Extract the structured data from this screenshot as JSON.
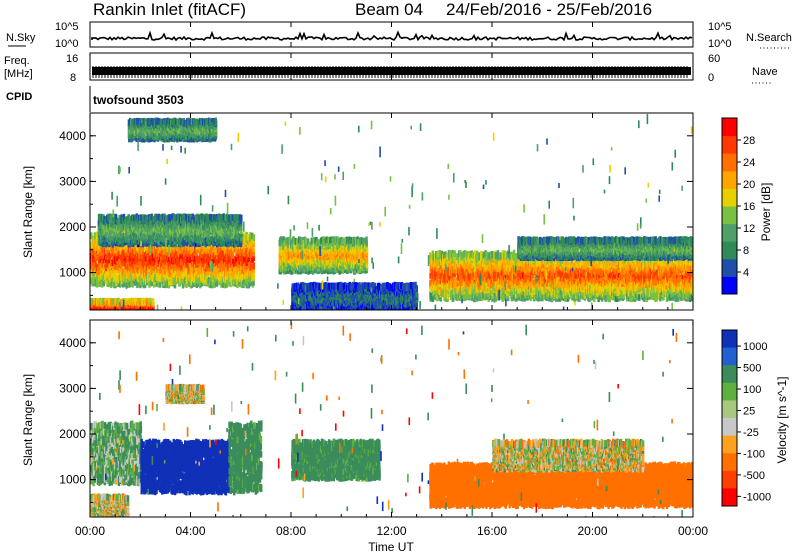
{
  "header": {
    "station": "Rankin Inlet (fitACF)",
    "beam": "Beam 04",
    "dates": "24/Feb/2016 - 25/Feb/2016"
  },
  "top_panels": {
    "nsky_label": "N.Sky",
    "nsky_ticks": [
      "10^5",
      "10^0"
    ],
    "nsearch_label": "N.Search",
    "nsearch_ticks": [
      "10^5",
      "10^0"
    ],
    "freq_label_line1": "Freq.",
    "freq_label_line2": "[MHz]",
    "freq_ticks": [
      "16",
      "8"
    ],
    "nave_label": "Nave",
    "nave_ticks": [
      "60",
      "0"
    ],
    "cpid_label": "CPID",
    "cpid_value": "twofsound 3503"
  },
  "time_axis": {
    "label": "Time UT",
    "ticks": [
      "00:00",
      "04:00",
      "08:00",
      "12:00",
      "16:00",
      "20:00",
      "00:00"
    ]
  },
  "colors": {
    "power_scale": [
      "#0000ff",
      "#1f4fa8",
      "#2e8b57",
      "#4f9f6a",
      "#7ac143",
      "#e8d000",
      "#ffa500",
      "#ff7000",
      "#ff3a00",
      "#ff0000"
    ],
    "velocity_scale": [
      "#1030b8",
      "#2060d0",
      "#3a8d5a",
      "#5fb040",
      "#a8c880",
      "#c8c8c8",
      "#ffa020",
      "#ff7000",
      "#ff4000",
      "#ff0000"
    ]
  },
  "chart_data": [
    {
      "type": "heatmap",
      "name": "power",
      "ylabel": "Slant Range [km]",
      "xlabel": "",
      "xlim": [
        0,
        24
      ],
      "ylim": [
        180,
        4500
      ],
      "yticks": [
        "1000",
        "2000",
        "3000",
        "4000"
      ],
      "colorbar_label": "Power [dB]",
      "colorbar_ticks": [
        "4",
        "8",
        "12",
        "16",
        "20",
        "24",
        "28"
      ],
      "zlim": [
        0,
        32
      ],
      "blobs": [
        {
          "x": [
            0.0,
            6.5
          ],
          "y": [
            800,
            1900
          ],
          "level": 26
        },
        {
          "x": [
            0.3,
            6.0
          ],
          "y": [
            1700,
            2300
          ],
          "level": 12
        },
        {
          "x": [
            0.0,
            2.5
          ],
          "y": [
            180,
            450
          ],
          "level": 30
        },
        {
          "x": [
            7.5,
            11.0
          ],
          "y": [
            1100,
            1800
          ],
          "level": 20
        },
        {
          "x": [
            13.5,
            24.0
          ],
          "y": [
            500,
            1500
          ],
          "level": 24
        },
        {
          "x": [
            17.0,
            24.0
          ],
          "y": [
            1400,
            1800
          ],
          "level": 12
        },
        {
          "x": [
            1.5,
            5.0
          ],
          "y": [
            4000,
            4400
          ],
          "level": 12
        },
        {
          "x": [
            8.0,
            13.0
          ],
          "y": [
            250,
            800
          ],
          "level": 6
        }
      ]
    },
    {
      "type": "heatmap",
      "name": "velocity",
      "ylabel": "Slant Range [km]",
      "xlabel": "Time UT",
      "xlim": [
        0,
        24
      ],
      "ylim": [
        180,
        4500
      ],
      "yticks": [
        "1000",
        "2000",
        "3000",
        "4000"
      ],
      "colorbar_label": "Velocity [m s^-1]",
      "colorbar_ticks": [
        "1000",
        "500",
        "100",
        "25",
        "-25",
        "-100",
        "-500",
        "-1000"
      ],
      "blobs": [
        {
          "x": [
            0.0,
            2.0
          ],
          "y": [
            1000,
            2300
          ],
          "level": 100
        },
        {
          "x": [
            2.0,
            5.5
          ],
          "y": [
            800,
            1900
          ],
          "level": 900
        },
        {
          "x": [
            5.5,
            6.8
          ],
          "y": [
            800,
            2300
          ],
          "level": 200
        },
        {
          "x": [
            8.0,
            11.5
          ],
          "y": [
            1100,
            1900
          ],
          "level": 200
        },
        {
          "x": [
            13.5,
            24.0
          ],
          "y": [
            500,
            1400
          ],
          "level": -300
        },
        {
          "x": [
            16.0,
            22.0
          ],
          "y": [
            1300,
            1900
          ],
          "level": 0
        },
        {
          "x": [
            0.0,
            1.5
          ],
          "y": [
            300,
            700
          ],
          "level": 0
        },
        {
          "x": [
            3.0,
            4.5
          ],
          "y": [
            2800,
            3100
          ],
          "level": 0
        }
      ]
    }
  ]
}
